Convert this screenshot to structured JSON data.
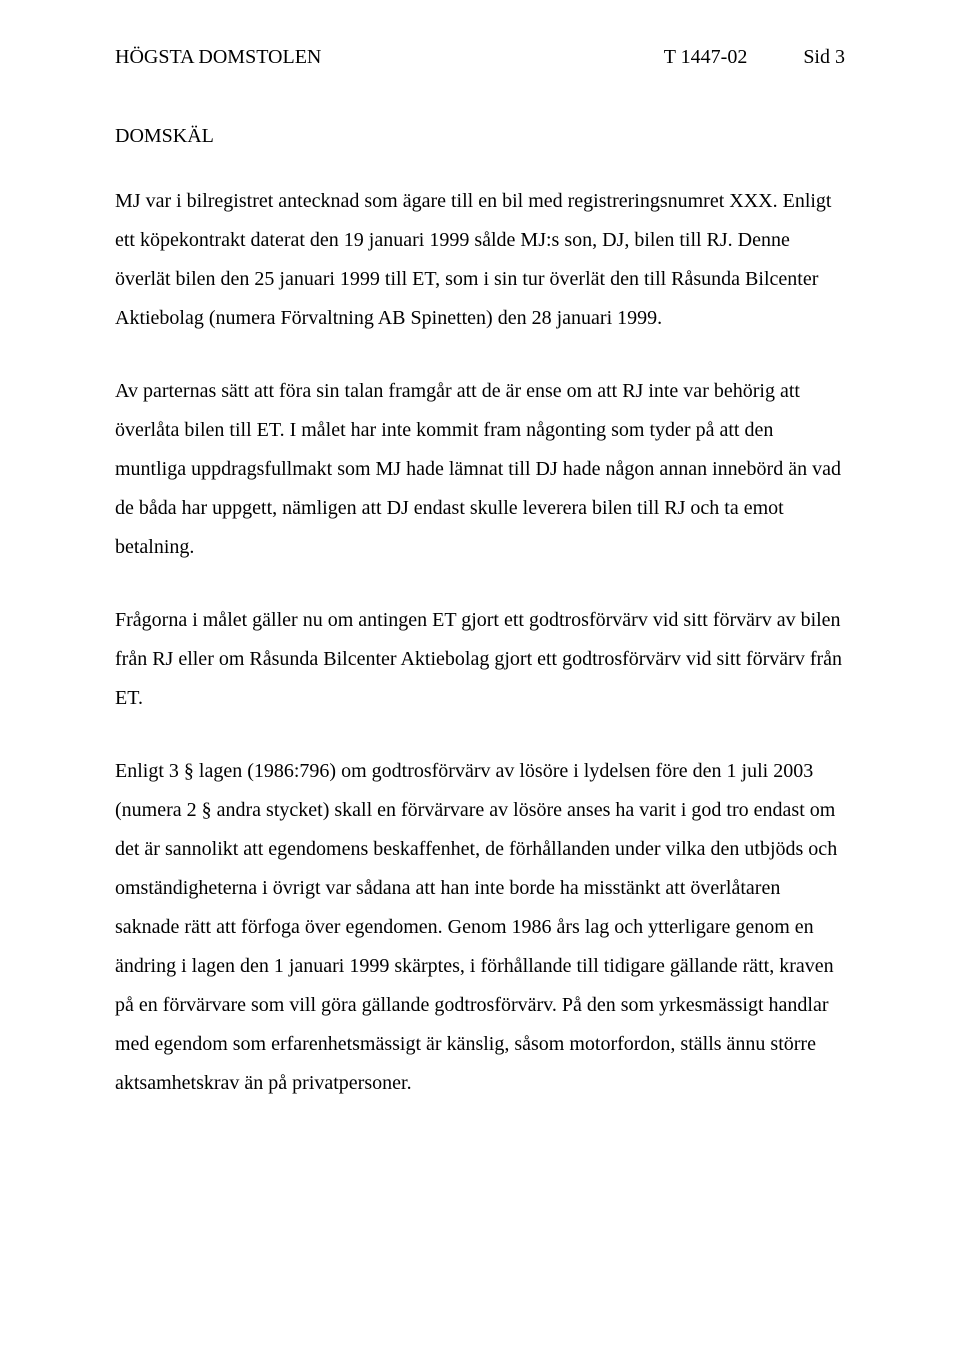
{
  "header": {
    "court": "HÖGSTA DOMSTOLEN",
    "case_no": "T 1447-02",
    "page_no": "Sid 3"
  },
  "section_title": "DOMSKÄL",
  "paragraphs": [
    "MJ var i bilregistret antecknad som ägare till en bil med registreringsnumret XXX. Enligt ett köpekontrakt daterat den 19 januari 1999 sålde MJ:s son, DJ, bilen till RJ. Denne överlät bilen den 25 januari 1999 till ET, som i sin tur överlät den till Råsunda Bilcenter Aktiebolag (numera Förvaltning AB Spinetten) den 28 januari 1999.",
    "Av parternas sätt att föra sin talan framgår att de är ense om att RJ inte var behörig att överlåta bilen till ET. I målet har inte kommit fram någonting som tyder på att den muntliga uppdragsfullmakt som MJ hade lämnat till DJ hade någon annan innebörd än vad de båda har uppgett, nämligen att DJ endast skulle leverera bilen till RJ och ta emot betalning.",
    "Frågorna i målet gäller nu om antingen ET gjort ett godtrosförvärv vid sitt förvärv av bilen från RJ eller om Råsunda Bilcenter Aktiebolag gjort ett godtrosförvärv vid sitt förvärv från ET.",
    "Enligt 3 § lagen (1986:796) om godtrosförvärv av lösöre i lydelsen före den 1 juli 2003 (numera 2 § andra stycket) skall en förvärvare av lösöre anses ha varit i god tro endast om det är sannolikt att egendomens beskaffenhet, de förhållanden under vilka den utbjöds och omständigheterna i övrigt var sådana att han inte borde ha misstänkt att överlåtaren saknade rätt att förfoga över egendomen. Genom 1986 års lag och ytterligare genom en ändring i lagen den 1 januari 1999 skärptes, i förhållande till tidigare gällande rätt, kraven på en förvärvare som vill göra gällande godtrosförvärv. På den som yrkesmässigt handlar med egendom som erfarenhetsmässigt är känslig, såsom motorfordon, ställs ännu större aktsamhetskrav än på privatpersoner."
  ]
}
